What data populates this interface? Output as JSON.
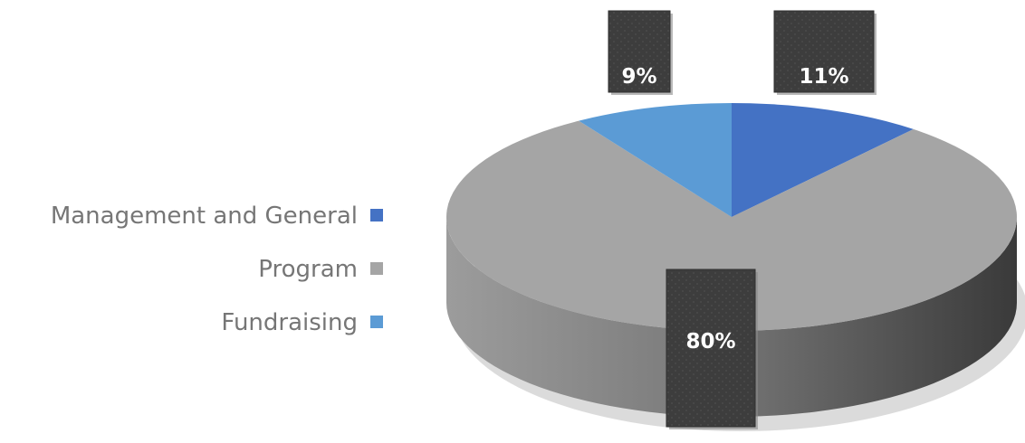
{
  "chart_data": {
    "type": "pie",
    "title": "",
    "legend_position": "left",
    "series": [
      {
        "name": "Management and General",
        "value": 11,
        "label": "11%",
        "color": "#4472C4"
      },
      {
        "name": "Program",
        "value": 80,
        "label": "80%",
        "color": "#A5A5A5"
      },
      {
        "name": "Fundraising",
        "value": 9,
        "label": "9%",
        "color": "#5B9BD5"
      }
    ]
  }
}
